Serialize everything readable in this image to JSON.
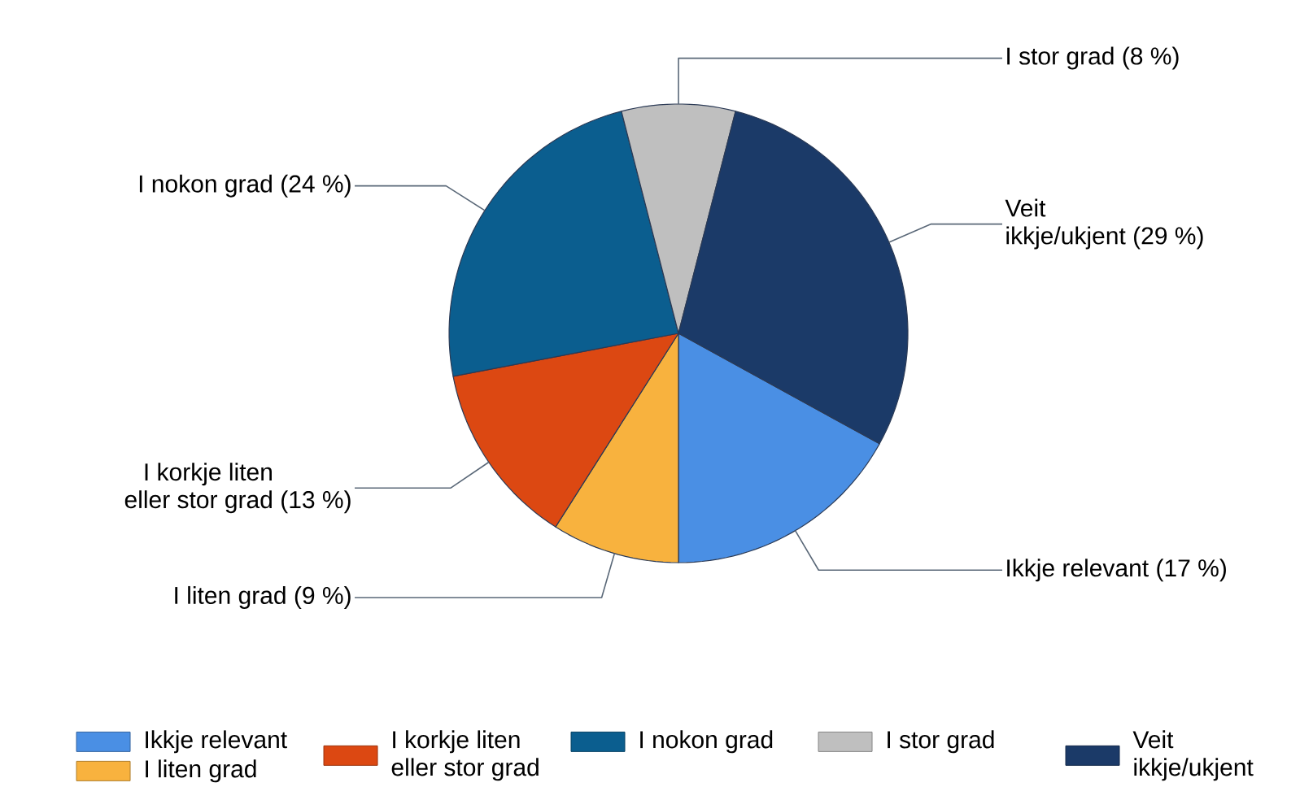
{
  "chart_data": {
    "type": "pie",
    "categories": [
      "Ikkje relevant",
      "I liten grad",
      "I korkje liten eller stor grad",
      "I nokon grad",
      "I stor grad",
      "Veit ikkje/ukjent"
    ],
    "values": [
      17,
      9,
      13,
      24,
      8,
      29
    ],
    "colors": [
      "#4a8fe4",
      "#f8b23e",
      "#dc4812",
      "#0b5e8f",
      "#bfbfbf",
      "#1b3a68"
    ],
    "value_labels": [
      "(17 %)",
      "(9 %)",
      "(13 %)",
      "(24 %)",
      "(8 %)",
      "(29 %)"
    ],
    "legend": "bottom"
  }
}
